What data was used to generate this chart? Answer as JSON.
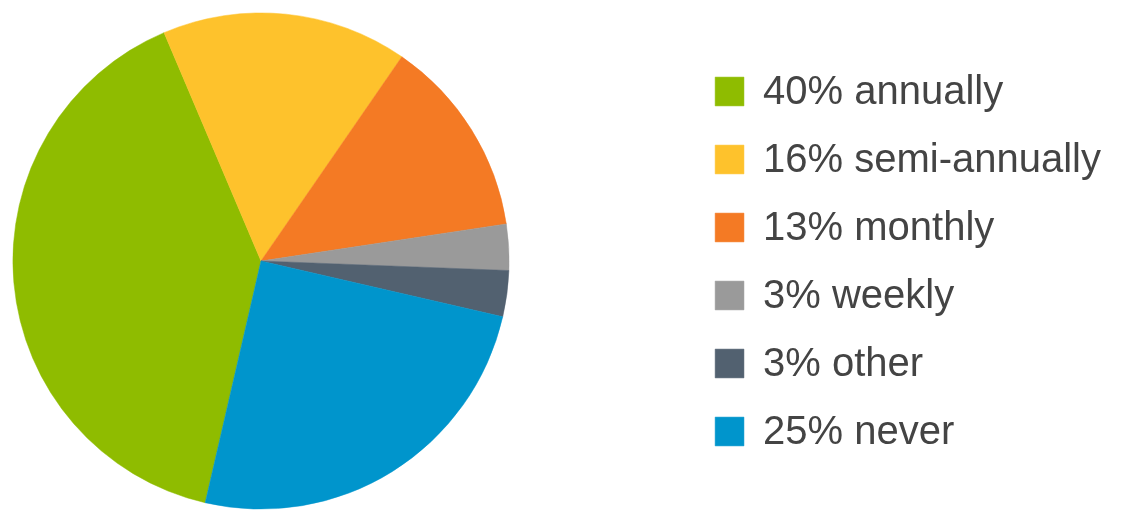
{
  "chart_data": {
    "type": "pie",
    "categories": [
      "40% annually",
      "16% semi-annually",
      "13% monthly",
      "3% weekly",
      "3% other",
      "25% never"
    ],
    "values": [
      40,
      16,
      13,
      3,
      3,
      25
    ],
    "colors": [
      "#8fbc00",
      "#fec22c",
      "#f47a24",
      "#9a9a9a",
      "#526170",
      "#0095cc"
    ],
    "legend": "right"
  }
}
